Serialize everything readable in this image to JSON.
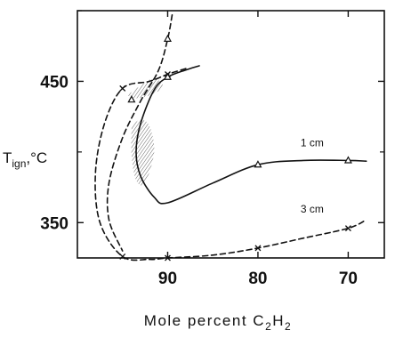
{
  "chart_data": {
    "type": "line",
    "xlabel_main": "Mole percent C",
    "xlabel_sub1": "2",
    "xlabel_mid": "H",
    "xlabel_sub2": "2",
    "ylabel_main": "T",
    "ylabel_sub": "ign",
    "ylabel_unit": ",°C",
    "xlim": [
      100,
      66
    ],
    "ylim": [
      325,
      500
    ],
    "x_ticks": [
      90,
      80,
      70
    ],
    "y_ticks": [
      450,
      350
    ],
    "x_tick_labels": [
      "90",
      "80",
      "70"
    ],
    "y_tick_labels": [
      "450",
      "350"
    ],
    "grid": false,
    "series": [
      {
        "name": "1 cm",
        "marker": "triangle",
        "style": "solid",
        "points": [
          [
            94,
            437
          ],
          [
            90,
            453
          ],
          [
            80,
            391
          ],
          [
            70,
            394
          ]
        ],
        "curve": [
          [
            86.5,
            461
          ],
          [
            88,
            458
          ],
          [
            90,
            453
          ],
          [
            91.5,
            444
          ],
          [
            93,
            420
          ],
          [
            93.5,
            400
          ],
          [
            93,
            383
          ],
          [
            91.5,
            368
          ],
          [
            90,
            364
          ],
          [
            85,
            378
          ],
          [
            80,
            391
          ],
          [
            75,
            394
          ],
          [
            70,
            394
          ],
          [
            68,
            393.5
          ]
        ]
      },
      {
        "name": "3 cm",
        "marker": "x",
        "style": "dashed",
        "points": [
          [
            95,
            445
          ],
          [
            90,
            455
          ],
          [
            95,
            326
          ],
          [
            90,
            325
          ],
          [
            80,
            332
          ],
          [
            70,
            346
          ]
        ],
        "curve": [
          [
            88,
            459
          ],
          [
            90,
            455
          ],
          [
            92,
            450
          ],
          [
            95,
            445
          ],
          [
            97,
            420
          ],
          [
            98,
            385
          ],
          [
            97.5,
            350
          ],
          [
            95,
            326
          ],
          [
            92,
            324
          ],
          [
            90,
            325
          ],
          [
            85,
            327
          ],
          [
            80,
            332
          ],
          [
            75,
            339
          ],
          [
            70,
            346
          ],
          [
            68,
            352
          ]
        ]
      },
      {
        "name": "",
        "marker": "triangle",
        "style": "dashed",
        "points": [
          [
            90,
            480
          ]
        ],
        "curve": [
          [
            89.5,
            497
          ],
          [
            90,
            480
          ],
          [
            91,
            458
          ],
          [
            93,
            436
          ],
          [
            95,
            410
          ],
          [
            96.5,
            378
          ],
          [
            96.5,
            352
          ],
          [
            95,
            330
          ]
        ]
      }
    ],
    "shaded_regions": [
      {
        "outline": [
          [
            94.5,
            440
          ],
          [
            93,
            447
          ],
          [
            91.5,
            452
          ],
          [
            90.5,
            446
          ],
          [
            92,
            440
          ],
          [
            93.5,
            438
          ]
        ]
      },
      {
        "outline": [
          [
            94,
            418
          ],
          [
            93,
            423
          ],
          [
            92,
            418
          ],
          [
            91.5,
            400
          ],
          [
            92.5,
            378
          ],
          [
            93.5,
            380
          ],
          [
            94,
            398
          ]
        ]
      }
    ],
    "curve_labels": [
      {
        "text": "1 cm",
        "x": 74,
        "y": 404
      },
      {
        "text": "3 cm",
        "x": 74,
        "y": 357
      }
    ]
  }
}
